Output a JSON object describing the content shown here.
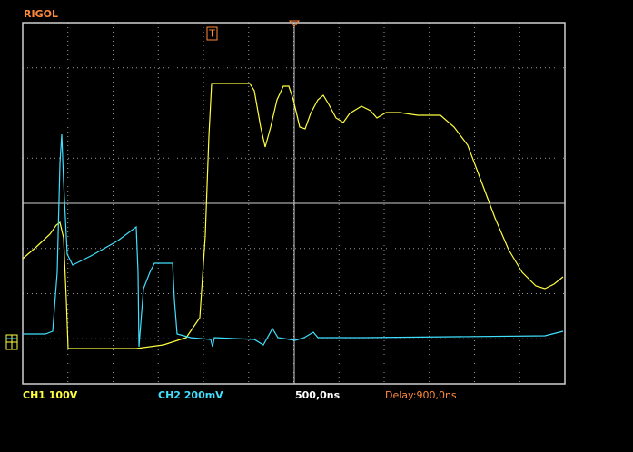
{
  "header": {
    "brand": "RIGOL",
    "trigger_marker": "T"
  },
  "status_bar": {
    "ch1": "CH1 100V",
    "ch2": "CH2 200mV",
    "timebase": "500,0ns",
    "delay": "Delay:900,0ns"
  }
}
